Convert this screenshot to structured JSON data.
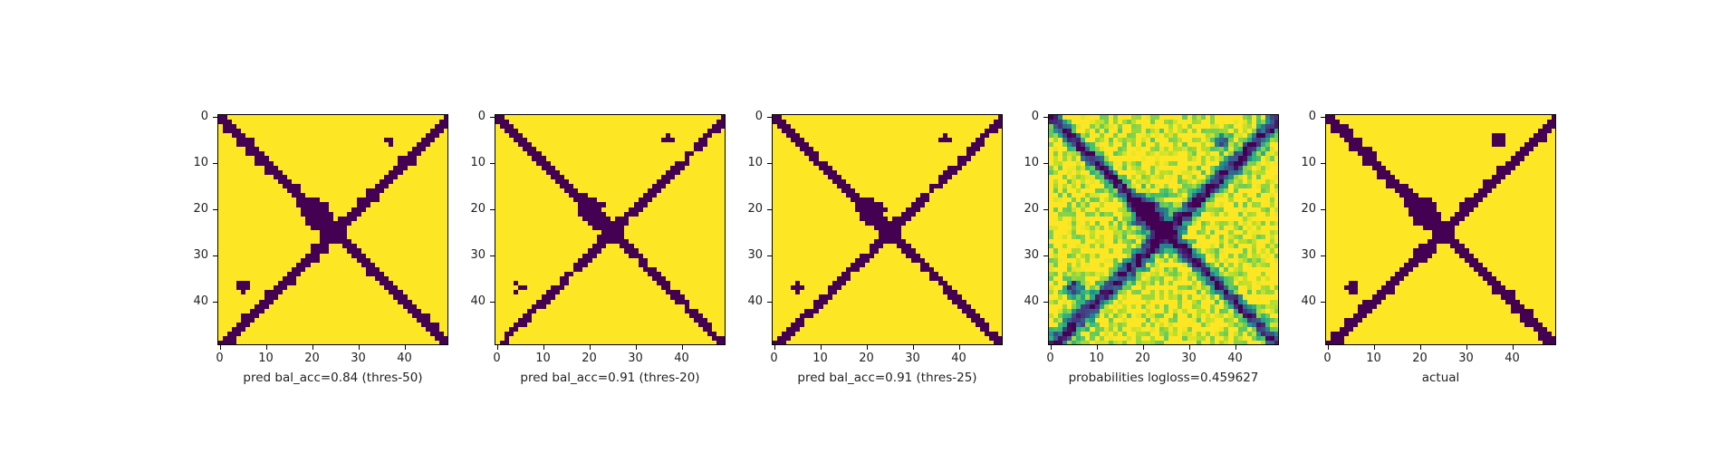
{
  "colors": {
    "low": "#440154",
    "high": "#fde725",
    "colormap": "viridis"
  },
  "chart_data": [
    {
      "type": "heatmap",
      "kind": "binary",
      "threshold": 50,
      "xlabel": "pred bal_acc=0.84 (thres-50)",
      "x_ticks": [
        "0",
        "10",
        "20",
        "30",
        "40"
      ],
      "y_ticks": [
        "0",
        "10",
        "20",
        "30",
        "40"
      ],
      "grid_size": 50,
      "value_range": [
        0,
        1
      ]
    },
    {
      "type": "heatmap",
      "kind": "binary",
      "threshold": 20,
      "xlabel": "pred bal_acc=0.91 (thres-20)",
      "x_ticks": [
        "0",
        "10",
        "20",
        "30",
        "40"
      ],
      "y_ticks": [
        "0",
        "10",
        "20",
        "30",
        "40"
      ],
      "grid_size": 50,
      "value_range": [
        0,
        1
      ]
    },
    {
      "type": "heatmap",
      "kind": "binary",
      "threshold": 25,
      "xlabel": "pred bal_acc=0.91 (thres-25)",
      "x_ticks": [
        "0",
        "10",
        "20",
        "30",
        "40"
      ],
      "y_ticks": [
        "0",
        "10",
        "20",
        "30",
        "40"
      ],
      "grid_size": 50,
      "value_range": [
        0,
        1
      ]
    },
    {
      "type": "heatmap",
      "kind": "probabilities",
      "xlabel": "probabilities logloss=0.459627",
      "x_ticks": [
        "0",
        "10",
        "20",
        "30",
        "40"
      ],
      "y_ticks": [
        "0",
        "10",
        "20",
        "30",
        "40"
      ],
      "grid_size": 50,
      "value_range": [
        0,
        1
      ]
    },
    {
      "type": "heatmap",
      "kind": "actual",
      "xlabel": "actual",
      "x_ticks": [
        "0",
        "10",
        "20",
        "30",
        "40"
      ],
      "y_ticks": [
        "0",
        "10",
        "20",
        "30",
        "40"
      ],
      "grid_size": 50,
      "value_range": [
        0,
        1
      ]
    }
  ]
}
